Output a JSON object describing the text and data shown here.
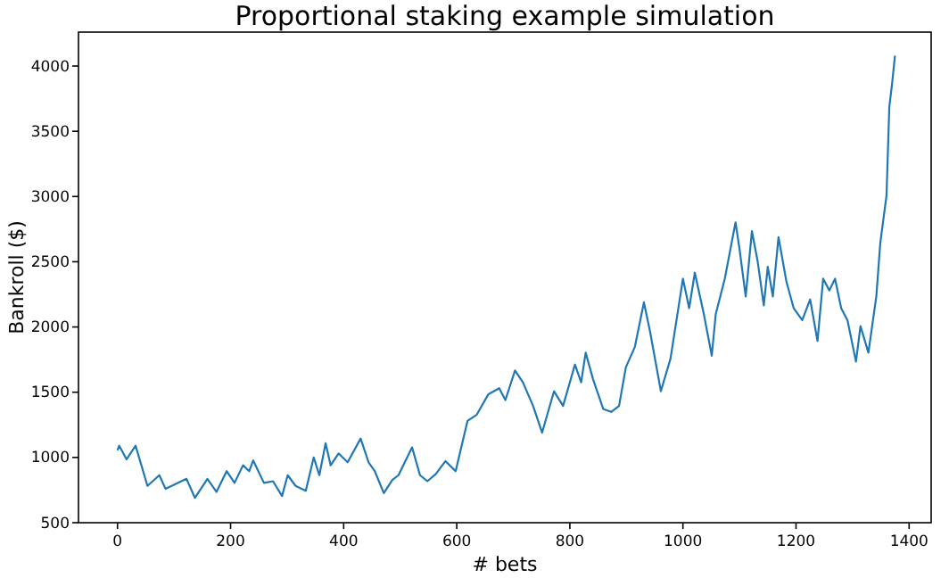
{
  "chart_data": {
    "type": "line",
    "title": "Proportional staking example simulation",
    "xlabel": "# bets",
    "ylabel": "Bankroll ($)",
    "x": [
      0,
      3,
      16,
      32,
      53,
      74,
      85,
      122,
      137,
      159,
      175,
      193,
      207,
      222,
      233,
      240,
      259,
      275,
      291,
      301,
      315,
      333,
      347,
      357,
      368,
      377,
      391,
      407,
      430,
      444,
      455,
      471,
      486,
      497,
      508,
      521,
      535,
      548,
      563,
      580,
      598,
      619,
      635,
      656,
      675,
      686,
      703,
      717,
      735,
      751,
      772,
      788,
      809,
      820,
      828,
      841,
      859,
      873,
      887,
      899,
      915,
      931,
      942,
      961,
      978,
      1000,
      1011,
      1021,
      1037,
      1051,
      1058,
      1074,
      1093,
      1100,
      1111,
      1122,
      1132,
      1143,
      1150,
      1159,
      1169,
      1183,
      1196,
      1211,
      1225,
      1238,
      1248,
      1259,
      1269,
      1280,
      1291,
      1306,
      1314,
      1328,
      1342,
      1349,
      1360,
      1365,
      1370,
      1375
    ],
    "values": [
      1054,
      1090,
      986,
      1090,
      782,
      864,
      759,
      836,
      690,
      836,
      736,
      895,
      805,
      940,
      895,
      977,
      805,
      818,
      704,
      864,
      782,
      745,
      1000,
      864,
      1109,
      940,
      1031,
      963,
      1145,
      963,
      895,
      727,
      827,
      864,
      963,
      1077,
      864,
      818,
      873,
      972,
      895,
      1280,
      1326,
      1485,
      1531,
      1440,
      1667,
      1576,
      1395,
      1190,
      1508,
      1395,
      1712,
      1576,
      1803,
      1600,
      1372,
      1349,
      1395,
      1690,
      1848,
      2189,
      1961,
      1508,
      1757,
      2370,
      2144,
      2416,
      2098,
      1780,
      2098,
      2370,
      2802,
      2600,
      2234,
      2734,
      2507,
      2166,
      2461,
      2234,
      2689,
      2348,
      2143,
      2052,
      2211,
      1893,
      2370,
      2280,
      2370,
      2143,
      2052,
      1735,
      2007,
      1803,
      2234,
      2643,
      3006,
      3687,
      3870,
      4080
    ],
    "color": "#1f77b4",
    "xlim": [
      -69,
      1439
    ],
    "ylim": [
      500,
      4260
    ],
    "xticks": [
      0,
      200,
      400,
      600,
      800,
      1000,
      1200,
      1400
    ],
    "yticks": [
      500,
      1000,
      1500,
      2000,
      2500,
      3000,
      3500,
      4000
    ],
    "grid": false,
    "line_style": "solid"
  }
}
